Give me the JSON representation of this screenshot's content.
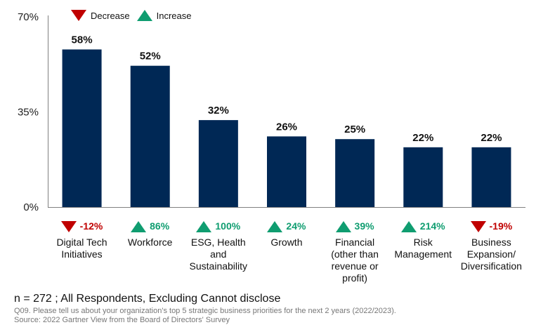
{
  "chart_data": {
    "type": "bar",
    "title": "",
    "xlabel": "",
    "ylabel": "",
    "ylim": [
      0,
      70
    ],
    "yticks": [
      0,
      35,
      70
    ],
    "ytick_labels": [
      "0%",
      "35%",
      "70%"
    ],
    "grid": false,
    "categories": [
      "Digital Tech Initiatives",
      "Workforce",
      "ESG, Health and Sustainability",
      "Growth",
      "Financial (other than revenue or profit)",
      "Risk Management",
      "Business Expansion/ Diversification"
    ],
    "category_lines": [
      [
        "Digital Tech",
        "Initiatives"
      ],
      [
        "Workforce"
      ],
      [
        "ESG, Health",
        "and",
        "Sustainability"
      ],
      [
        "Growth"
      ],
      [
        "Financial",
        "(other than",
        "revenue or",
        "profit)"
      ],
      [
        "Risk",
        "Management"
      ],
      [
        "Business",
        "Expansion/",
        "Diversification"
      ]
    ],
    "values": [
      58,
      52,
      32,
      26,
      25,
      22,
      22
    ],
    "data_labels": [
      "58%",
      "52%",
      "32%",
      "26%",
      "25%",
      "22%",
      "22%"
    ],
    "changes": [
      {
        "direction": "decrease",
        "label": "-12%"
      },
      {
        "direction": "increase",
        "label": "86%"
      },
      {
        "direction": "increase",
        "label": "100%"
      },
      {
        "direction": "increase",
        "label": "24%"
      },
      {
        "direction": "increase",
        "label": "39%"
      },
      {
        "direction": "increase",
        "label": "214%"
      },
      {
        "direction": "decrease",
        "label": "-19%"
      }
    ],
    "legend": {
      "placement": "top-left",
      "items": [
        {
          "label": "Decrease",
          "symbol": "triangle-down",
          "color": "#c00000"
        },
        {
          "label": "Increase",
          "symbol": "triangle-up",
          "color": "#0f9d70"
        }
      ]
    },
    "bar_color": "#002855",
    "increase_color": "#0f9d70",
    "decrease_color": "#c00000"
  },
  "footer": {
    "sample_note": "n = 272 ; All Respondents, Excluding Cannot disclose",
    "question": "Q09. Please tell us about your organization's top 5 strategic business priorities for the next 2 years (2022/2023).",
    "source": "Source: 2022 Gartner View from the Board of Directors' Survey"
  }
}
